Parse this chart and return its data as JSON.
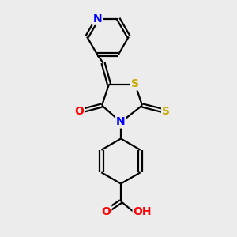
{
  "bg_color": "#ececec",
  "bond_color": "#000000",
  "bond_width": 1.6,
  "atom_colors": {
    "N": "#0000ff",
    "O": "#ff0000",
    "S": "#ccaa00",
    "C": "#000000",
    "H": "#000000"
  },
  "font_size": 9,
  "fig_size": [
    3.0,
    3.0
  ],
  "dpi": 100
}
